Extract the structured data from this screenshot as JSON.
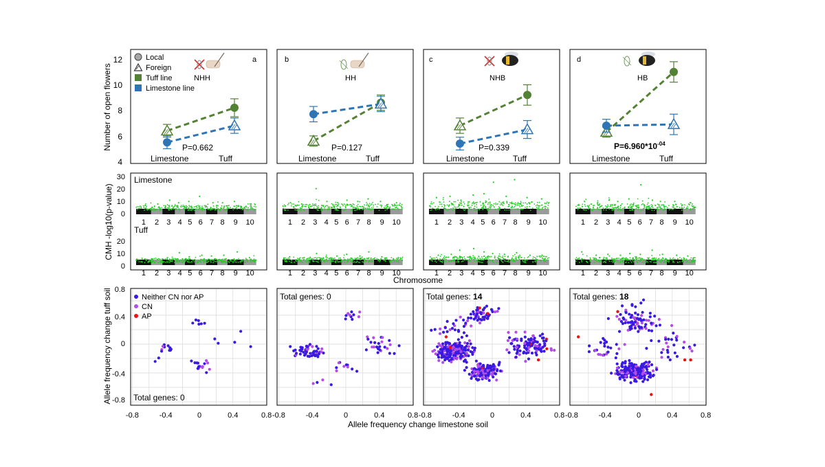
{
  "colors": {
    "tuff_green": "#548235",
    "limestone_blue": "#2e75b6",
    "manhattan_green": "#22cc22",
    "chrom_black": "#111111",
    "chrom_grey": "#9a9a9a",
    "neither_dot": "#3a1ae0",
    "cn_dot": "#b44ce8",
    "ap_dot": "#ee1111",
    "grid": "#d9d9d9"
  },
  "labels": {
    "y_flowers": "Number of open flowers",
    "y_cmh": "CMH -log10(p-value)",
    "x_chromosome": "Chromosome",
    "y_af": "Allele frequency  change tuff soil",
    "x_af": "Allele frequency  change limestone soil",
    "limestone_track": "Limestone",
    "tuff_track": "Tuff"
  },
  "chart_data": [
    {
      "type": "line",
      "panel": "a",
      "treatment": "NHH",
      "categories": [
        "Limestone",
        "Tuff"
      ],
      "ylim": [
        4,
        12
      ],
      "yticks": [
        4,
        6,
        8,
        10,
        12
      ],
      "series": [
        {
          "name": "Tuff line",
          "values": [
            6.5,
            8.3
          ],
          "errors": [
            0.5,
            0.7
          ],
          "markers": [
            "foreign",
            "local"
          ]
        },
        {
          "name": "Limestone line",
          "values": [
            5.6,
            6.9
          ],
          "errors": [
            0.5,
            0.6
          ],
          "markers": [
            "local",
            "foreign"
          ]
        }
      ],
      "pvalue": "P=0.662",
      "legend": [
        {
          "label": "Local",
          "symbol": "circle"
        },
        {
          "label": "Foreign",
          "symbol": "triangle"
        },
        {
          "label": "Tuff line",
          "symbol": "square-green"
        },
        {
          "label": "Limestone line",
          "symbol": "square-blue"
        }
      ]
    },
    {
      "type": "line",
      "panel": "b",
      "treatment": "HH",
      "categories": [
        "Limestone",
        "Tuff"
      ],
      "ylim": [
        4,
        12
      ],
      "series": [
        {
          "name": "Tuff line",
          "values": [
            5.7,
            8.7
          ],
          "errors": [
            0.4,
            0.6
          ],
          "markers": [
            "foreign",
            "local"
          ]
        },
        {
          "name": "Limestone line",
          "values": [
            7.8,
            8.6
          ],
          "errors": [
            0.6,
            0.6
          ],
          "markers": [
            "local",
            "foreign"
          ]
        }
      ],
      "pvalue": "P=0.127"
    },
    {
      "type": "line",
      "panel": "c",
      "treatment": "NHB",
      "categories": [
        "Limestone",
        "Tuff"
      ],
      "ylim": [
        4,
        12
      ],
      "series": [
        {
          "name": "Tuff line",
          "values": [
            6.9,
            9.3
          ],
          "errors": [
            0.6,
            0.8
          ],
          "markers": [
            "foreign",
            "local"
          ]
        },
        {
          "name": "Limestone line",
          "values": [
            5.5,
            6.6
          ],
          "errors": [
            0.5,
            0.7
          ],
          "markers": [
            "local",
            "foreign"
          ]
        }
      ],
      "pvalue": "P=0.339"
    },
    {
      "type": "line",
      "panel": "d",
      "treatment": "HB",
      "categories": [
        "Limestone",
        "Tuff"
      ],
      "ylim": [
        4,
        12
      ],
      "series": [
        {
          "name": "Tuff line",
          "values": [
            6.4,
            11.1
          ],
          "errors": [
            0.4,
            0.8
          ],
          "markers": [
            "foreign",
            "local"
          ]
        },
        {
          "name": "Limestone line",
          "values": [
            6.9,
            7.0
          ],
          "errors": [
            0.5,
            0.8
          ],
          "markers": [
            "local",
            "foreign"
          ]
        }
      ],
      "pvalue_base": "P=6.960",
      "pvalue_mid": "*10",
      "pvalue_exp": "-04"
    },
    {
      "type": "scatter",
      "kind": "manhattan",
      "panels": [
        "a",
        "b",
        "c",
        "d"
      ],
      "tracks": [
        "Limestone",
        "Tuff"
      ],
      "ylim": [
        0,
        30
      ],
      "yticks": [
        0,
        10,
        20,
        30
      ],
      "chromosomes": [
        "1",
        "2",
        "3",
        "4",
        "5",
        "6",
        "7",
        "8",
        "9",
        "10"
      ],
      "peaks": [
        {
          "track": "Limestone",
          "values": [
            [
              [
                1,
                7
              ],
              [
                2,
                8
              ],
              [
                3,
                11
              ],
              [
                4,
                9
              ],
              [
                5,
                10
              ],
              [
                6,
                14
              ],
              [
                7,
                9
              ],
              [
                8,
                9
              ],
              [
                9,
                10
              ],
              [
                10,
                8
              ]
            ],
            [
              [
                1,
                9
              ],
              [
                2,
                8
              ],
              [
                3,
                20
              ],
              [
                4,
                10
              ],
              [
                5,
                9
              ],
              [
                6,
                11
              ],
              [
                7,
                10
              ],
              [
                8,
                12
              ],
              [
                9,
                10
              ],
              [
                10,
                9
              ]
            ],
            [
              [
                1,
                13
              ],
              [
                2,
                14
              ],
              [
                3,
                11
              ],
              [
                4,
                15
              ],
              [
                5,
                16
              ],
              [
                6,
                25
              ],
              [
                7,
                14
              ],
              [
                8,
                27
              ],
              [
                9,
                13
              ],
              [
                10,
                12
              ]
            ],
            [
              [
                1,
                10
              ],
              [
                2,
                9
              ],
              [
                3,
                11
              ],
              [
                4,
                10
              ],
              [
                5,
                12
              ],
              [
                6,
                23
              ],
              [
                7,
                11
              ],
              [
                8,
                10
              ],
              [
                9,
                10
              ],
              [
                10,
                9
              ]
            ]
          ]
        },
        {
          "track": "Tuff",
          "values": [
            [
              [
                1,
                8
              ],
              [
                2,
                7
              ],
              [
                3,
                9
              ],
              [
                4,
                15
              ],
              [
                5,
                10
              ],
              [
                6,
                12
              ],
              [
                7,
                11
              ],
              [
                8,
                12
              ],
              [
                9,
                16
              ],
              [
                10,
                9
              ]
            ],
            [
              [
                1,
                10
              ],
              [
                2,
                9
              ],
              [
                3,
                14
              ],
              [
                4,
                10
              ],
              [
                5,
                11
              ],
              [
                6,
                13
              ],
              [
                7,
                11
              ],
              [
                8,
                16
              ],
              [
                9,
                10
              ],
              [
                10,
                9
              ]
            ],
            [
              [
                1,
                12
              ],
              [
                2,
                13
              ],
              [
                3,
                18
              ],
              [
                4,
                20
              ],
              [
                5,
                16
              ],
              [
                6,
                14
              ],
              [
                7,
                13
              ],
              [
                8,
                15
              ],
              [
                9,
                12
              ],
              [
                10,
                12
              ]
            ],
            [
              [
                1,
                16
              ],
              [
                2,
                12
              ],
              [
                3,
                13
              ],
              [
                4,
                12
              ],
              [
                5,
                14
              ],
              [
                6,
                13
              ],
              [
                7,
                18
              ],
              [
                8,
                13
              ],
              [
                9,
                12
              ],
              [
                10,
                11
              ]
            ]
          ]
        }
      ]
    },
    {
      "type": "scatter",
      "kind": "allele-frequency",
      "xlim": [
        -0.8,
        0.8
      ],
      "ylim": [
        -0.8,
        0.8
      ],
      "ticks": [
        "-0.8",
        "-0.4",
        "0",
        "0.4",
        "0.8"
      ],
      "legend": [
        "Neither CN nor AP",
        "CN",
        "AP"
      ],
      "panels": [
        {
          "total_label": "Total genes: ",
          "total_value": "0",
          "total_bold": false,
          "clusters": [
            [
              -0.4,
              -0.05,
              0.04,
              10
            ],
            [
              0.0,
              -0.3,
              0.06,
              16
            ],
            [
              0.0,
              0.3,
              0.04,
              6
            ],
            [
              0.25,
              0.05,
              0.05,
              3
            ],
            [
              -0.55,
              -0.25,
              0.04,
              2
            ],
            [
              0.5,
              0.18,
              0.02,
              1
            ],
            [
              0.6,
              -0.04,
              0.01,
              1
            ]
          ]
        },
        {
          "total_label": "Total genes: ",
          "total_value": "0",
          "total_bold": false,
          "clusters": [
            [
              -0.45,
              -0.1,
              0.06,
              60
            ],
            [
              0.05,
              0.4,
              0.05,
              10
            ],
            [
              0.42,
              -0.02,
              0.08,
              25
            ],
            [
              -0.05,
              -0.3,
              0.06,
              10
            ],
            [
              -0.3,
              -0.5,
              0.05,
              4
            ]
          ]
        },
        {
          "total_label": "Total genes: ",
          "total_value": "14",
          "total_bold": true,
          "clusters": [
            [
              -0.45,
              -0.1,
              0.08,
              200
            ],
            [
              -0.1,
              -0.38,
              0.07,
              150
            ],
            [
              0.45,
              -0.02,
              0.1,
              120
            ],
            [
              -0.1,
              0.42,
              0.07,
              50
            ],
            [
              -0.45,
              0.2,
              0.1,
              30
            ]
          ]
        },
        {
          "total_label": "Total genes: ",
          "total_value": "18",
          "total_bold": true,
          "clusters": [
            [
              -0.05,
              -0.38,
              0.08,
              200
            ],
            [
              0.0,
              0.3,
              0.08,
              60
            ],
            [
              -0.4,
              -0.05,
              0.08,
              25
            ],
            [
              0.42,
              0.0,
              0.12,
              30
            ],
            [
              -0.15,
              0.45,
              0.1,
              20
            ]
          ]
        }
      ]
    }
  ]
}
